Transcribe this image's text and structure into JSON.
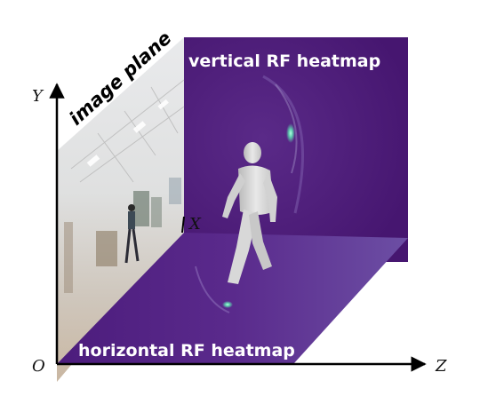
{
  "labels": {
    "vertical_heatmap": "vertical RF heatmap",
    "horizontal_heatmap": "horizontal RF heatmap",
    "image_plane": "image plane"
  },
  "axes": {
    "origin": "O",
    "x": "X",
    "y": "Y",
    "z": "Z"
  },
  "colors": {
    "heatmap_base": "#4a1a7a",
    "heatmap_hotspot": "#7ef0c8",
    "axis": "#000000",
    "label_text": "#ffffff"
  },
  "figure": {
    "silhouette": "walking-person"
  }
}
